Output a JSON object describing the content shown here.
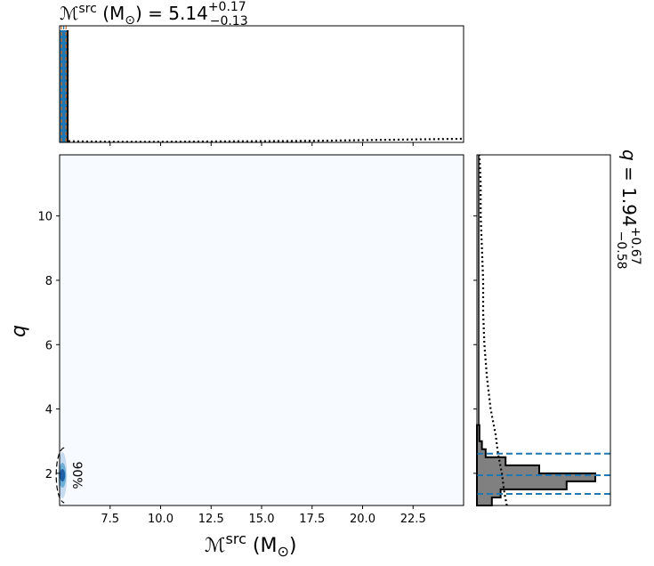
{
  "chart_data": [
    {
      "type": "histogram",
      "panel": "top-marginal",
      "title": {
        "symbol": "ℳ",
        "sup": "src",
        "unit": " (M",
        "unit_sub": "⊙",
        "unit_close": ") = ",
        "median": "5.14",
        "err_plus": "+0.17",
        "err_minus": "−0.13"
      },
      "xlim": [
        5.0,
        25.0
      ],
      "median_line": 5.14,
      "ci_lines": [
        5.01,
        5.31
      ],
      "prior_curve": {
        "style": "dotted",
        "x": [
          5.5,
          8,
          10,
          12,
          14,
          16,
          18,
          20,
          22,
          24,
          25
        ],
        "y": [
          0.01,
          0.005,
          0.005,
          0.008,
          0.01,
          0.012,
          0.015,
          0.02,
          0.025,
          0.03,
          0.032
        ]
      },
      "bar_value": 1.0
    },
    {
      "type": "heatmap",
      "panel": "joint-2d",
      "xlabel": {
        "symbol": "ℳ",
        "sup": "src",
        "unit": " (M",
        "unit_sub": "⊙",
        "unit_close": ")"
      },
      "ylabel": "q",
      "xlim": [
        5.0,
        25.0
      ],
      "ylim": [
        1.0,
        11.9
      ],
      "xticks": [
        "7.5",
        "10.0",
        "12.5",
        "15.0",
        "17.5",
        "20.0",
        "22.5"
      ],
      "xtick_values": [
        7.5,
        10.0,
        12.5,
        15.0,
        17.5,
        20.0,
        22.5
      ],
      "yticks": [
        "2",
        "4",
        "6",
        "8",
        "10"
      ],
      "ytick_values": [
        2,
        4,
        6,
        8,
        10
      ],
      "contour_label": "90%",
      "contour_center": [
        5.14,
        1.94
      ],
      "colormap": "Blues"
    },
    {
      "type": "histogram",
      "panel": "right-marginal",
      "orientation": "horizontal",
      "title": {
        "symbol": "q",
        "median": "1.94",
        "err_plus": "+0.67",
        "err_minus": "−0.58",
        "eq": " = "
      },
      "ylim": [
        1.0,
        11.9
      ],
      "bins": [
        {
          "lo": 1.0,
          "hi": 1.25,
          "value": 0.12
        },
        {
          "lo": 1.25,
          "hi": 1.5,
          "value": 0.19
        },
        {
          "lo": 1.5,
          "hi": 1.75,
          "value": 0.72
        },
        {
          "lo": 1.75,
          "hi": 2.0,
          "value": 0.95
        },
        {
          "lo": 2.0,
          "hi": 2.25,
          "value": 0.5
        },
        {
          "lo": 2.25,
          "hi": 2.5,
          "value": 0.23
        },
        {
          "lo": 2.5,
          "hi": 2.75,
          "value": 0.07
        },
        {
          "lo": 2.75,
          "hi": 3.0,
          "value": 0.04
        },
        {
          "lo": 3.0,
          "hi": 3.5,
          "value": 0.02
        }
      ],
      "median_line": 1.94,
      "ci_lines": [
        1.36,
        2.61
      ],
      "prior_curve": {
        "style": "dotted",
        "q": [
          1.0,
          1.4,
          2.0,
          2.6,
          3.2,
          4.0,
          5.0,
          6.0,
          7.0,
          8.0,
          9.0,
          10.0,
          11.0,
          11.9
        ],
        "value": [
          0.24,
          0.22,
          0.2,
          0.17,
          0.15,
          0.11,
          0.08,
          0.06,
          0.05,
          0.05,
          0.04,
          0.03,
          0.03,
          0.02
        ]
      },
      "xlim": [
        0,
        1.0
      ]
    }
  ],
  "colors": {
    "hist_fill": "#808080",
    "bar_fill": "#1f77b4",
    "median_line": "#1f77b4",
    "heatmap_bg": "#f7fbff",
    "heatmap_core": "#1f5fa8"
  }
}
